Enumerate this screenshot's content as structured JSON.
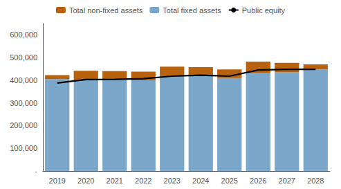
{
  "chart_data": {
    "type": "bar",
    "categories": [
      "2019",
      "2020",
      "2021",
      "2022",
      "2023",
      "2024",
      "2025",
      "2026",
      "2027",
      "2028"
    ],
    "series": [
      {
        "name": "Total fixed assets",
        "type": "bar",
        "color": "#7BA7CB",
        "values": [
          405000,
          400000,
          405000,
          400000,
          418000,
          420000,
          410000,
          432000,
          435000,
          448000
        ]
      },
      {
        "name": "Total non-fixed assets",
        "type": "bar",
        "color": "#B8620E",
        "values": [
          18000,
          42000,
          35000,
          38000,
          42000,
          38000,
          38000,
          50000,
          42000,
          22000
        ]
      },
      {
        "name": "Public equity",
        "type": "line",
        "color": "#000000",
        "values": [
          388000,
          403000,
          404000,
          407000,
          418000,
          422000,
          418000,
          445000,
          448000,
          448000
        ]
      }
    ],
    "stacked": true,
    "ylim": [
      0,
      650000
    ],
    "yticks": [
      {
        "value": 0,
        "label": "-"
      },
      {
        "value": 100000,
        "label": "100,000"
      },
      {
        "value": 200000,
        "label": "200,000"
      },
      {
        "value": 300000,
        "label": "300,000"
      },
      {
        "value": 400000,
        "label": "400,000"
      },
      {
        "value": 500000,
        "label": "500,000"
      },
      {
        "value": 600000,
        "label": "600,000"
      }
    ],
    "grid": false,
    "legend": "top"
  }
}
